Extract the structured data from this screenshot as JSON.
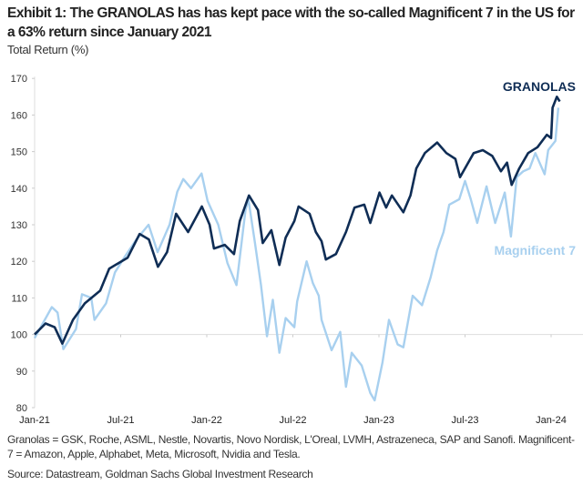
{
  "chart_data": {
    "type": "line",
    "title": "Exhibit 1: The GRANOLAS has has kept pace with the so-called Magnificent 7 in the US for a 63% return since January 2021",
    "ylabel": "Total Return (%)",
    "xlabel": "",
    "x_units": "months since Jan-21",
    "xlim": [
      0,
      37
    ],
    "ylim": [
      80,
      170
    ],
    "yticks": [
      80,
      90,
      100,
      110,
      120,
      130,
      140,
      150,
      160,
      170
    ],
    "xticks": [
      {
        "value": 0,
        "label": "Jan-21"
      },
      {
        "value": 6,
        "label": "Jul-21"
      },
      {
        "value": 12,
        "label": "Jan-22"
      },
      {
        "value": 18,
        "label": "Jul-22"
      },
      {
        "value": 24,
        "label": "Jan-23"
      },
      {
        "value": 30,
        "label": "Jul-23"
      },
      {
        "value": 36,
        "label": "Jan-24"
      }
    ],
    "grid": false,
    "legend": "inline labels at right",
    "series": [
      {
        "name": "GRANOLAS",
        "color": "#0f2d55",
        "x": [
          0,
          0.76,
          1.4,
          1.93,
          2.67,
          3.5,
          4.57,
          5.2,
          5.84,
          6.48,
          7.32,
          7.96,
          8.6,
          9.23,
          9.86,
          10.7,
          11.66,
          12.2,
          12.5,
          13.25,
          13.9,
          14.3,
          14.94,
          15.57,
          15.9,
          16.5,
          17.06,
          17.5,
          18.1,
          18.4,
          19.17,
          19.6,
          20.0,
          20.3,
          21.0,
          21.7,
          22.3,
          22.98,
          23.4,
          24.04,
          24.5,
          24.9,
          25.7,
          26.2,
          26.6,
          27.2,
          28.06,
          28.7,
          29.33,
          29.65,
          30.6,
          31.24,
          31.9,
          32.5,
          32.93,
          33.25,
          33.78,
          34.4,
          35.05,
          35.7,
          36.0,
          36.1,
          36.4,
          36.6
        ],
        "y": [
          100,
          103,
          102,
          97.5,
          104,
          108.5,
          112,
          118,
          119.5,
          121,
          127.5,
          126,
          118.5,
          122.5,
          133,
          128,
          135,
          130,
          123.5,
          124.5,
          122,
          131,
          138,
          134,
          125,
          128.5,
          119,
          126.5,
          131,
          135,
          133,
          128,
          125.5,
          120.5,
          122,
          128,
          134.7,
          135.5,
          130.5,
          138.8,
          134.7,
          138,
          133.4,
          138,
          145.4,
          149.6,
          152.5,
          149.6,
          148,
          143,
          149.6,
          150.4,
          148.8,
          144.6,
          147,
          140.9,
          145.4,
          149.6,
          151.2,
          154.6,
          153.7,
          162,
          165,
          163.7
        ]
      },
      {
        "name": "Magnificent 7",
        "color": "#a8d0ef",
        "x": [
          0,
          1.2,
          1.6,
          2.0,
          2.88,
          3.3,
          3.95,
          4.17,
          4.98,
          5.6,
          6.24,
          7.1,
          7.94,
          8.57,
          9.4,
          9.94,
          10.36,
          10.9,
          11.64,
          12.06,
          12.8,
          13.44,
          14.07,
          14.7,
          14.9,
          15.36,
          15.78,
          16.2,
          16.6,
          17.06,
          17.5,
          18.1,
          18.3,
          18.96,
          19.4,
          19.8,
          20.0,
          20.7,
          21.3,
          21.7,
          22.1,
          22.8,
          23.4,
          23.7,
          24.25,
          24.7,
          25.3,
          25.7,
          26.35,
          27.0,
          27.6,
          28.06,
          28.5,
          28.9,
          29.6,
          30.0,
          30.4,
          30.85,
          31.5,
          32.1,
          32.77,
          33.2,
          33.6,
          34.05,
          34.5,
          34.9,
          35.55,
          35.8,
          36.3,
          36.5
        ],
        "y": [
          99,
          107.5,
          106,
          96,
          101.5,
          111,
          110,
          104,
          108.5,
          117,
          121,
          126,
          130,
          122.5,
          130,
          139,
          142.5,
          140,
          144,
          136.5,
          130,
          119.5,
          113.5,
          134,
          137,
          125,
          113.5,
          99.5,
          109.5,
          95,
          104.5,
          102,
          109,
          120,
          114,
          110.6,
          104,
          95.7,
          100.7,
          85.7,
          95,
          91.5,
          84,
          82,
          92.4,
          104,
          97.3,
          96.5,
          110.6,
          108,
          115.6,
          123,
          128,
          135.5,
          137,
          142,
          137,
          130.5,
          140.5,
          130.5,
          138.8,
          126.8,
          143,
          144.6,
          145.4,
          149.6,
          143.8,
          150.4,
          152.9,
          162
        ]
      }
    ],
    "annotations": [
      "GRANOLAS",
      "Magnificent 7"
    ],
    "footnote": "Granolas = GSK, Roche, ASML, Nestle, Novartis, Novo Nordisk, L'Oreal, LVMH, Astrazeneca, SAP and Sanofi. Magnificent-7 = Amazon, Apple, Alphabet, Meta, Microsoft, Nvidia and Tesla.",
    "source": "Source: Datastream, Goldman Sachs Global Investment Research"
  }
}
